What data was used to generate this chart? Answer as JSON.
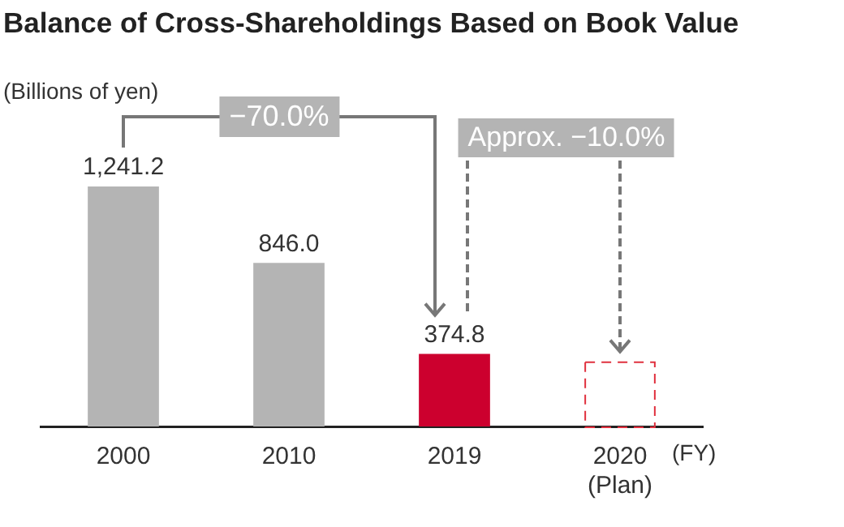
{
  "chart_data": {
    "type": "bar",
    "title": "Balance of Cross-Shareholdings Based on Book Value",
    "ylabel": "(Billions of yen)",
    "xlabel": "(FY)",
    "categories": [
      "2000",
      "2010",
      "2019",
      "2020\n(Plan)"
    ],
    "stacked": true,
    "legend": false,
    "series": [
      {
        "values": [
          1241.2,
          846.0,
          374.8,
          null
        ],
        "colors": [
          "#b4b4b4",
          "#b4b4b4",
          "#cc002e",
          null
        ],
        "value_labels": [
          "1,241.2",
          "846.0",
          "374.8",
          null
        ]
      },
      {
        "values": [
          null,
          null,
          null,
          337
        ],
        "color": "#e0303e",
        "line_style": "dashed"
      }
    ],
    "annotations": [
      "−70.0%",
      "Approx. −10.0%"
    ]
  }
}
